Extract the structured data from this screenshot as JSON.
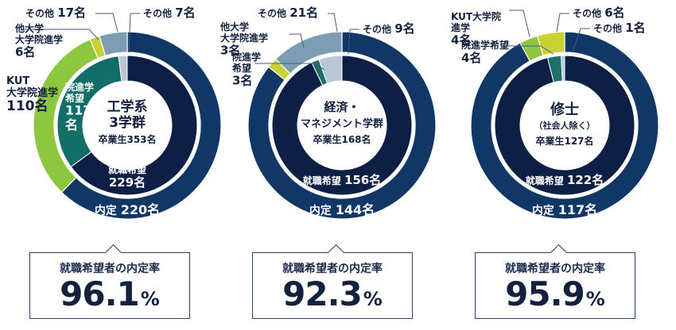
{
  "colors": {
    "outer_navy": "#103766",
    "inner_navy": "#0d1f44",
    "kut_green": "#8dc63f",
    "other_univ_green": "#c8d232",
    "other_grey": "#7d9db5",
    "inner_teal": "#136e68",
    "grad_hope_teal": "#1e6f6a",
    "other_light": "#b8c7d3",
    "white": "#ffffff"
  },
  "chart_data": [
    {
      "type": "pie",
      "variant": "nested-donut",
      "title_lines": [
        "工学系",
        "3学群"
      ],
      "grads_text": "卒業生353名",
      "total": 353,
      "outer": [
        {
          "key": "hired",
          "label": "内定",
          "value": 220,
          "text": "220名",
          "color": "#103766"
        },
        {
          "key": "kut",
          "label": "KUT\n大学院進学",
          "value": 110,
          "text": "110名",
          "color": "#8dc63f"
        },
        {
          "key": "other_univ",
          "label": "他大学\n大学院進学",
          "value": 6,
          "text": "6名",
          "color": "#c8d232"
        },
        {
          "key": "other",
          "label": "その他",
          "value": 17,
          "text": "17名",
          "color": "#7d9db5"
        }
      ],
      "inner": [
        {
          "key": "job_hope",
          "label": "就職希望",
          "value": 229,
          "text": "229名",
          "color": "#0d1f44"
        },
        {
          "key": "grad_hope",
          "label": "院進学\n希望",
          "value": 117,
          "text": "117\n名",
          "color": "#136e68"
        },
        {
          "key": "other",
          "label": "その他",
          "value": 7,
          "text": "7名",
          "color": "#b8c7d3"
        }
      ],
      "rate_label": "就職希望者の内定率",
      "rate": "96.1",
      "rate_unit": "%"
    },
    {
      "type": "pie",
      "variant": "nested-donut",
      "title_lines": [
        "経済・",
        "マネジメント学群"
      ],
      "grads_text": "卒業生168名",
      "total": 168,
      "outer": [
        {
          "key": "hired",
          "label": "内定",
          "value": 144,
          "text": "144名",
          "color": "#103766"
        },
        {
          "key": "other_univ",
          "label": "他大学\n大学院進学",
          "value": 3,
          "text": "3名",
          "color": "#c8d232"
        },
        {
          "key": "other",
          "label": "その他",
          "value": 21,
          "text": "21名",
          "color": "#7d9db5"
        }
      ],
      "inner": [
        {
          "key": "job_hope",
          "label": "就職希望",
          "value": 156,
          "text": "156名",
          "color": "#0d1f44"
        },
        {
          "key": "grad_hope",
          "label": "院進学\n希望",
          "value": 3,
          "text": "3名",
          "color": "#1e6f6a"
        },
        {
          "key": "other",
          "label": "その他",
          "value": 9,
          "text": "9名",
          "color": "#b8c7d3"
        }
      ],
      "rate_label": "就職希望者の内定率",
      "rate": "92.3",
      "rate_unit": "%"
    },
    {
      "type": "pie",
      "variant": "nested-donut",
      "title_lines": [
        "修士"
      ],
      "subtitle": "（社会人除く）",
      "grads_text": "卒業生127名",
      "total": 127,
      "outer": [
        {
          "key": "hired",
          "label": "内定",
          "value": 117,
          "text": "117名",
          "color": "#103766"
        },
        {
          "key": "kut",
          "label": "KUT大学院\n進学",
          "value": 4,
          "text": "4名",
          "color": "#8dc63f"
        },
        {
          "key": "other",
          "label": "その他",
          "value": 6,
          "text": "6名",
          "color": "#c8d232"
        }
      ],
      "inner": [
        {
          "key": "job_hope",
          "label": "就職希望",
          "value": 122,
          "text": "122名",
          "color": "#0d1f44"
        },
        {
          "key": "grad_hope",
          "label": "院進学希望",
          "value": 4,
          "text": "4名",
          "color": "#1e6f6a"
        },
        {
          "key": "other",
          "label": "その他",
          "value": 1,
          "text": "1名",
          "color": "#b8c7d3"
        }
      ],
      "rate_label": "就職希望者の内定率",
      "rate": "95.9",
      "rate_unit": "%"
    }
  ]
}
